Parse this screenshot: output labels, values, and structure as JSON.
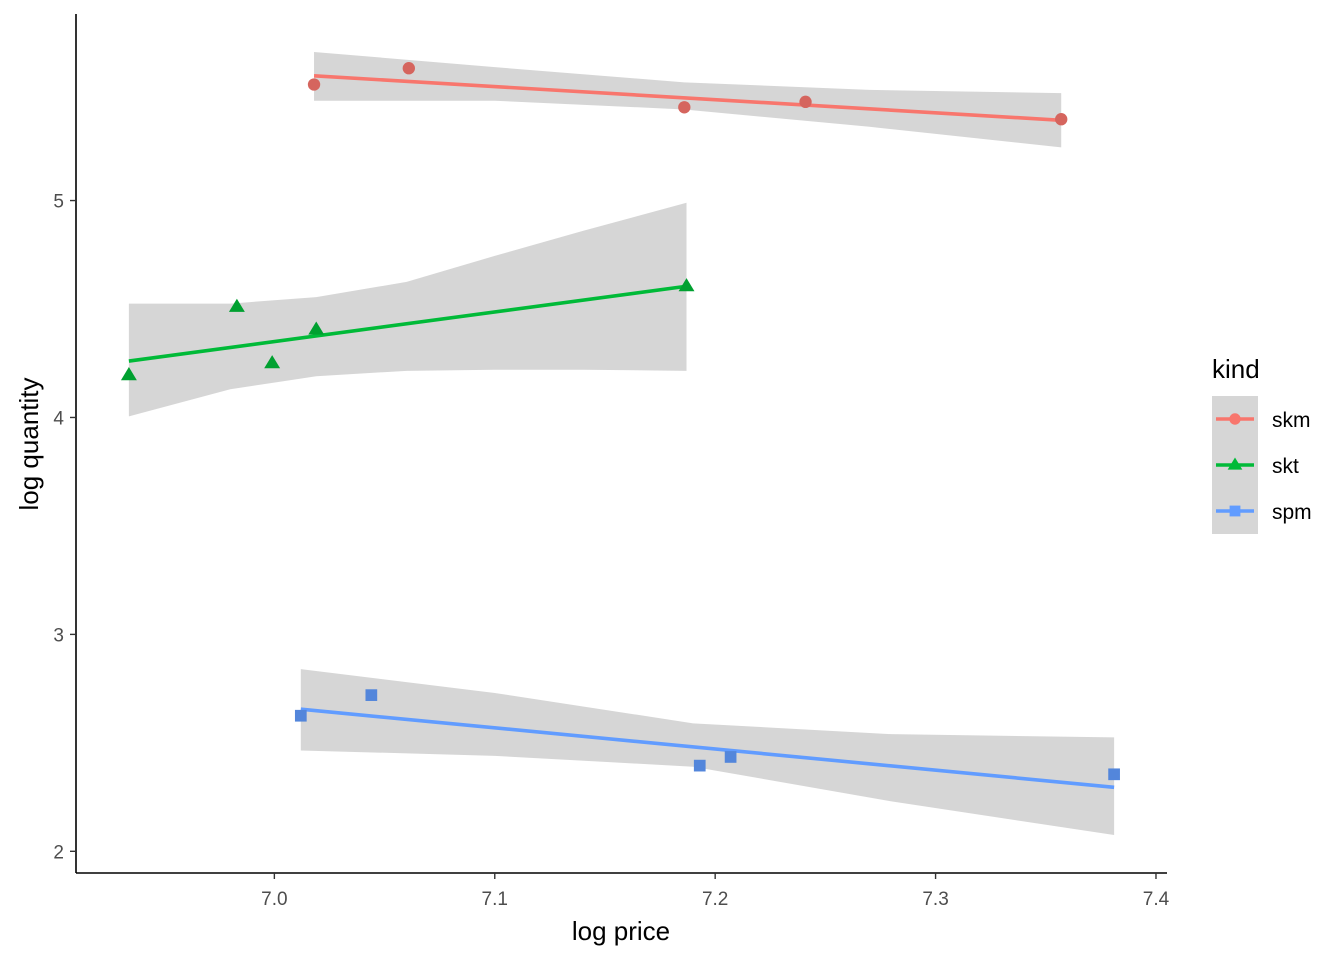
{
  "chart_data": {
    "type": "scatter",
    "title": "",
    "xlabel": "log price",
    "ylabel": "log quantity",
    "xlim": [
      6.91,
      7.405
    ],
    "ylim": [
      1.9,
      5.86
    ],
    "x_ticks": [
      7.0,
      7.1,
      7.2,
      7.3,
      7.4
    ],
    "x_tick_labels": [
      "7.0",
      "7.1",
      "7.2",
      "7.3",
      "7.4"
    ],
    "y_ticks": [
      2,
      3,
      4,
      5
    ],
    "y_tick_labels": [
      "2",
      "3",
      "4",
      "5"
    ],
    "grid": false,
    "legend": {
      "title": "kind",
      "position": "right"
    },
    "series": [
      {
        "name": "skm",
        "color": "#F8766D",
        "marker": "circle",
        "points": [
          [
            7.018,
            5.535
          ],
          [
            7.061,
            5.61
          ],
          [
            7.186,
            5.43
          ],
          [
            7.241,
            5.455
          ],
          [
            7.357,
            5.375
          ]
        ],
        "fit": {
          "x": [
            7.018,
            7.357
          ],
          "y": [
            5.575,
            5.37
          ]
        },
        "band": {
          "x": [
            7.018,
            7.1,
            7.186,
            7.27,
            7.357
          ],
          "lower": [
            5.46,
            5.46,
            5.42,
            5.34,
            5.245
          ],
          "upper": [
            5.685,
            5.615,
            5.545,
            5.51,
            5.495
          ]
        }
      },
      {
        "name": "skt",
        "color": "#00BA38",
        "marker": "triangle",
        "points": [
          [
            6.934,
            4.195
          ],
          [
            6.983,
            4.51
          ],
          [
            6.999,
            4.25
          ],
          [
            7.019,
            4.405
          ],
          [
            7.187,
            4.605
          ]
        ],
        "fit": {
          "x": [
            6.934,
            7.187
          ],
          "y": [
            4.26,
            4.605
          ]
        },
        "band": {
          "x": [
            6.934,
            6.98,
            7.019,
            7.06,
            7.1,
            7.14,
            7.187
          ],
          "lower": [
            4.005,
            4.13,
            4.19,
            4.215,
            4.22,
            4.22,
            4.215
          ],
          "upper": [
            4.525,
            4.525,
            4.555,
            4.625,
            4.745,
            4.86,
            4.99
          ]
        }
      },
      {
        "name": "spm",
        "color": "#619CFF",
        "marker": "square",
        "points": [
          [
            7.012,
            2.625
          ],
          [
            7.044,
            2.72
          ],
          [
            7.193,
            2.395
          ],
          [
            7.207,
            2.435
          ],
          [
            7.381,
            2.355
          ]
        ],
        "fit": {
          "x": [
            7.012,
            7.381
          ],
          "y": [
            2.655,
            2.295
          ]
        },
        "band": {
          "x": [
            7.012,
            7.1,
            7.19,
            7.28,
            7.381
          ],
          "lower": [
            2.465,
            2.44,
            2.39,
            2.23,
            2.075
          ],
          "upper": [
            2.84,
            2.73,
            2.59,
            2.54,
            2.525
          ]
        }
      }
    ]
  }
}
